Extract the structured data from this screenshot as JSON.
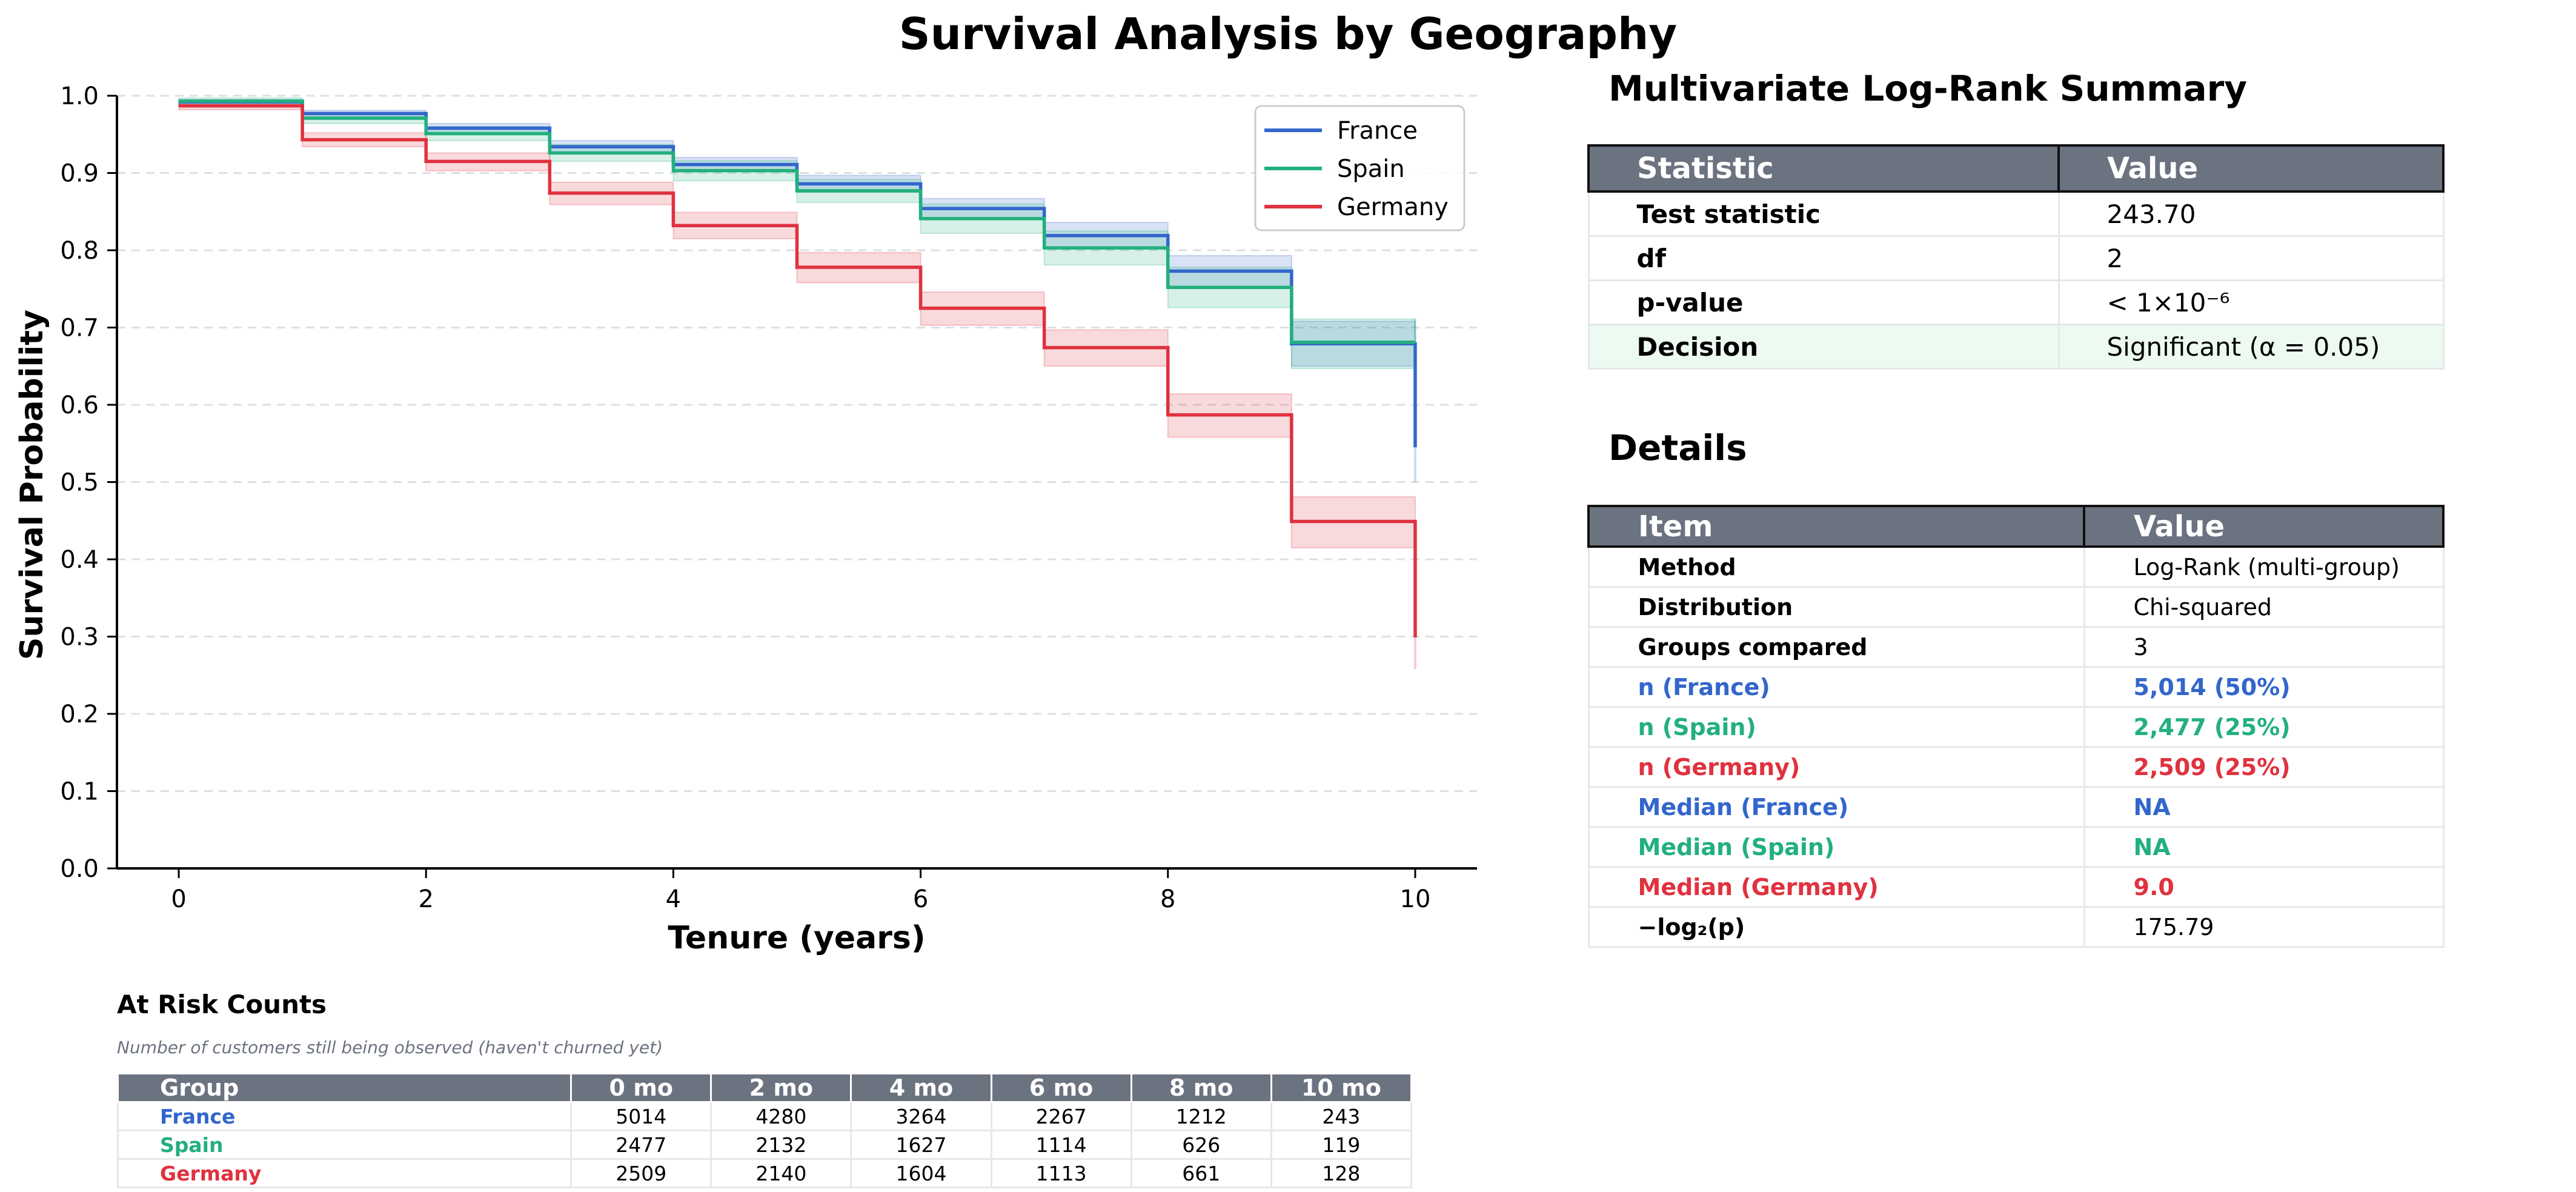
{
  "title": "Survival Analysis by Geography",
  "chart_data": {
    "type": "line",
    "subtype": "kaplan-meier-step",
    "xlabel": "Tenure (years)",
    "ylabel": "Survival Probability",
    "xlim": [
      -0.5,
      10.5
    ],
    "ylim": [
      0,
      1.0
    ],
    "xticks": [
      0,
      2,
      4,
      6,
      8,
      10
    ],
    "yticks": [
      0.0,
      0.1,
      0.2,
      0.3,
      0.4,
      0.5,
      0.6,
      0.7,
      0.8,
      0.9,
      1.0
    ],
    "grid": "horizontal-dashed",
    "legend_position": "top-right",
    "series": [
      {
        "name": "France",
        "color": "#3366cc",
        "times": [
          0,
          1,
          2,
          3,
          4,
          5,
          6,
          7,
          8,
          9,
          10
        ],
        "survival": [
          0.992,
          0.977,
          0.958,
          0.934,
          0.911,
          0.886,
          0.854,
          0.819,
          0.773,
          0.679,
          0.545
        ],
        "ci_lower": [
          0.988,
          0.972,
          0.951,
          0.926,
          0.902,
          0.875,
          0.841,
          0.802,
          0.752,
          0.65,
          0.5
        ],
        "ci_upper": [
          0.995,
          0.981,
          0.964,
          0.942,
          0.92,
          0.897,
          0.867,
          0.836,
          0.793,
          0.708,
          0.59
        ]
      },
      {
        "name": "Spain",
        "color": "#22b07d",
        "times": [
          0,
          1,
          2,
          3,
          4,
          5,
          6,
          7,
          8,
          9,
          10
        ],
        "survival": [
          0.993,
          0.971,
          0.951,
          0.926,
          0.903,
          0.877,
          0.841,
          0.803,
          0.752,
          0.681,
          0.681
        ],
        "ci_lower": [
          0.988,
          0.964,
          0.942,
          0.915,
          0.89,
          0.862,
          0.822,
          0.781,
          0.726,
          0.647,
          0.647
        ],
        "ci_upper": [
          0.997,
          0.978,
          0.96,
          0.937,
          0.916,
          0.892,
          0.86,
          0.825,
          0.778,
          0.711,
          0.711
        ]
      },
      {
        "name": "Germany",
        "color": "#e0313f",
        "times": [
          0,
          1,
          2,
          3,
          4,
          5,
          6,
          7,
          8,
          9,
          10
        ],
        "survival": [
          0.987,
          0.943,
          0.915,
          0.874,
          0.832,
          0.778,
          0.725,
          0.674,
          0.587,
          0.449,
          0.299
        ],
        "ci_lower": [
          0.982,
          0.934,
          0.903,
          0.859,
          0.815,
          0.758,
          0.703,
          0.65,
          0.558,
          0.415,
          0.258
        ],
        "ci_upper": [
          0.991,
          0.952,
          0.926,
          0.888,
          0.849,
          0.797,
          0.746,
          0.697,
          0.614,
          0.481,
          0.34
        ]
      }
    ]
  },
  "summary": {
    "title": "Multivariate Log-Rank Summary",
    "headers": [
      "Statistic",
      "Value"
    ],
    "rows": [
      {
        "label": "Test statistic",
        "value": "243.70"
      },
      {
        "label": "df",
        "value": "2"
      },
      {
        "label": "p-value",
        "value": "< 1×10⁻⁶"
      },
      {
        "label": "Decision",
        "value": "Significant (α = 0.05)"
      }
    ],
    "decision_bg": "#ecfaf1"
  },
  "details": {
    "title": "Details",
    "headers": [
      "Item",
      "Value"
    ],
    "rows": [
      {
        "label": "Method",
        "value": "Log-Rank (multi-group)",
        "color": "#000000",
        "bold_value": false
      },
      {
        "label": "Distribution",
        "value": "Chi-squared",
        "color": "#000000",
        "bold_value": false
      },
      {
        "label": "Groups compared",
        "value": "3",
        "color": "#000000",
        "bold_value": false
      },
      {
        "label": "n (France)",
        "value": "5,014 (50%)",
        "color": "#3366cc",
        "bold_value": true
      },
      {
        "label": "n (Spain)",
        "value": "2,477 (25%)",
        "color": "#22b07d",
        "bold_value": true
      },
      {
        "label": "n (Germany)",
        "value": "2,509 (25%)",
        "color": "#e0313f",
        "bold_value": true
      },
      {
        "label": "Median (France)",
        "value": "NA",
        "color": "#3366cc",
        "bold_value": true
      },
      {
        "label": "Median (Spain)",
        "value": "NA",
        "color": "#22b07d",
        "bold_value": true
      },
      {
        "label": "Median (Germany)",
        "value": "9.0",
        "color": "#e0313f",
        "bold_value": true
      },
      {
        "label": "−log₂(p)",
        "value": "175.79",
        "color": "#000000",
        "bold_value": false
      }
    ]
  },
  "at_risk": {
    "title": "At Risk Counts",
    "subtitle": "Number of customers still being observed (haven't churned yet)",
    "headers": [
      "Group",
      "0 mo",
      "2 mo",
      "4 mo",
      "6 mo",
      "8 mo",
      "10 mo"
    ],
    "rows": [
      {
        "group": "France",
        "color": "#3366cc",
        "counts": [
          "5014",
          "4280",
          "3264",
          "2267",
          "1212",
          "243"
        ]
      },
      {
        "group": "Spain",
        "color": "#22b07d",
        "counts": [
          "2477",
          "2132",
          "1627",
          "1114",
          "626",
          "119"
        ]
      },
      {
        "group": "Germany",
        "color": "#e0313f",
        "counts": [
          "2509",
          "2140",
          "1604",
          "1113",
          "661",
          "128"
        ]
      }
    ]
  },
  "theme": {
    "header_bg": "#6b7280",
    "grid_color": "#e5e7eb"
  }
}
